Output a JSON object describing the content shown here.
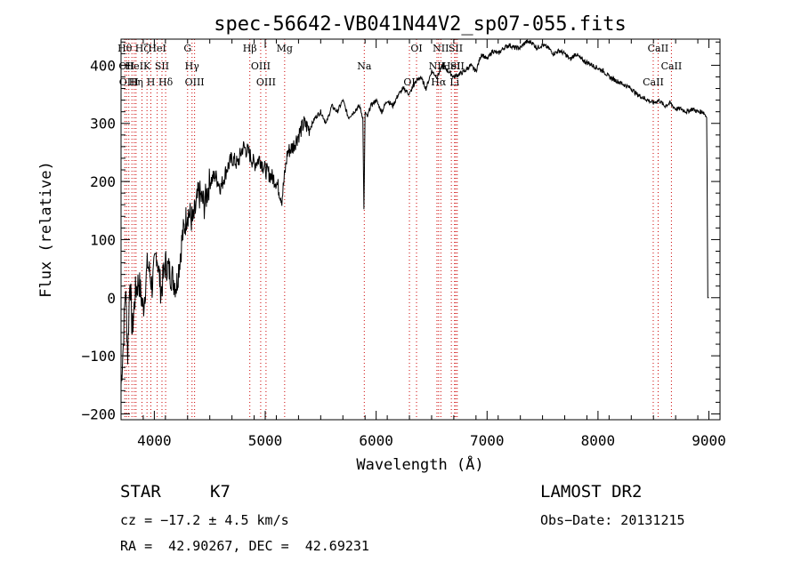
{
  "chart_data": {
    "type": "line",
    "title": "spec-56642-VB041N44V2_sp07-055.fits",
    "xlabel": "Wavelength (Å)",
    "ylabel": "Flux (relative)",
    "xlim": [
      3700,
      9100
    ],
    "ylim": [
      -210,
      445
    ],
    "x_ticks": [
      4000,
      5000,
      6000,
      7000,
      8000,
      9000
    ],
    "y_ticks": [
      -200,
      -100,
      0,
      100,
      200,
      300,
      400
    ],
    "grid": false,
    "line_color": "#000000",
    "marker_color": "#cc0000",
    "series": [
      {
        "x": [
          3700,
          3720,
          3740,
          3760,
          3780,
          3800,
          3830,
          3860,
          3900,
          3940,
          3980,
          4020,
          4060,
          4100,
          4150,
          4200,
          4250,
          4300,
          4350,
          4400,
          4450,
          4500,
          4550,
          4600,
          4650,
          4700,
          4750,
          4800,
          4850,
          4900,
          4950,
          5000,
          5050,
          5100,
          5150,
          5200,
          5250,
          5300,
          5350,
          5400,
          5450,
          5500,
          5550,
          5600,
          5650,
          5700,
          5750,
          5800,
          5850,
          5880,
          5890,
          5900,
          5920,
          5950,
          6000,
          6050,
          6100,
          6150,
          6200,
          6250,
          6300,
          6350,
          6400,
          6450,
          6500,
          6550,
          6600,
          6650,
          6700,
          6750,
          6800,
          6850,
          6900,
          6950,
          7000,
          7050,
          7100,
          7150,
          7200,
          7250,
          7300,
          7350,
          7400,
          7450,
          7500,
          7550,
          7600,
          7650,
          7700,
          7750,
          7800,
          7850,
          7900,
          7950,
          8000,
          8050,
          8100,
          8150,
          8200,
          8250,
          8300,
          8350,
          8400,
          8450,
          8500,
          8550,
          8600,
          8650,
          8700,
          8750,
          8800,
          8850,
          8900,
          8950,
          8980,
          8990,
          9000
        ],
        "y": [
          -150,
          -80,
          20,
          -100,
          40,
          -60,
          10,
          30,
          -20,
          60,
          20,
          80,
          10,
          60,
          40,
          20,
          100,
          150,
          130,
          180,
          160,
          200,
          210,
          190,
          220,
          240,
          230,
          260,
          250,
          230,
          240,
          220,
          210,
          200,
          170,
          250,
          260,
          280,
          300,
          290,
          310,
          320,
          300,
          330,
          320,
          340,
          310,
          320,
          330,
          310,
          150,
          320,
          310,
          330,
          340,
          320,
          340,
          330,
          350,
          360,
          350,
          370,
          380,
          360,
          390,
          380,
          400,
          390,
          380,
          385,
          390,
          400,
          390,
          420,
          410,
          425,
          420,
          430,
          435,
          430,
          430,
          440,
          440,
          430,
          435,
          430,
          420,
          425,
          420,
          410,
          420,
          410,
          405,
          400,
          395,
          390,
          380,
          375,
          370,
          365,
          360,
          350,
          345,
          340,
          335,
          340,
          330,
          335,
          325,
          325,
          320,
          325,
          320,
          320,
          310,
          0,
          0
        ]
      }
    ],
    "lines_red": [
      {
        "x": 3734,
        "label": "Hθ"
      },
      {
        "x": 3750,
        "label": "OII"
      },
      {
        "x": 3770,
        "label": "OIII"
      },
      {
        "x": 3798,
        "label": ""
      },
      {
        "x": 3819,
        "label": "HeI"
      },
      {
        "x": 3835,
        "label": "Hη"
      },
      {
        "x": 3889,
        "label": "Hζ"
      },
      {
        "x": 3934,
        "label": "K"
      },
      {
        "x": 3969,
        "label": "H"
      },
      {
        "x": 4026,
        "label": "HeI"
      },
      {
        "x": 4069,
        "label": "SII"
      },
      {
        "x": 4102,
        "label": "Hδ"
      },
      {
        "x": 4300,
        "label": "G"
      },
      {
        "x": 4340,
        "label": "Hγ"
      },
      {
        "x": 4363,
        "label": "OIII"
      },
      {
        "x": 4861,
        "label": "Hβ"
      },
      {
        "x": 4959,
        "label": "OIII"
      },
      {
        "x": 5007,
        "label": "OIII"
      },
      {
        "x": 5175,
        "label": "Mg"
      },
      {
        "x": 5893,
        "label": "Na"
      },
      {
        "x": 6300,
        "label": "OI"
      },
      {
        "x": 6364,
        "label": "OI"
      },
      {
        "x": 6548,
        "label": "NII"
      },
      {
        "x": 6563,
        "label": "Hα"
      },
      {
        "x": 6583,
        "label": "NII"
      },
      {
        "x": 6678,
        "label": "HeI"
      },
      {
        "x": 6707,
        "label": "Li"
      },
      {
        "x": 6717,
        "label": "SII"
      },
      {
        "x": 6731,
        "label": "SII"
      },
      {
        "x": 8498,
        "label": "CaII"
      },
      {
        "x": 8542,
        "label": "CaII"
      },
      {
        "x": 8662,
        "label": "CaII"
      }
    ]
  },
  "info": {
    "class": "STAR",
    "subclass": "K7",
    "survey": "LAMOST DR2",
    "cz": "cz = −17.2 ± 4.5 km/s",
    "obs_date": "Obs−Date: 20131215",
    "coords": "RA =  42.90267, DEC =  42.69231"
  }
}
